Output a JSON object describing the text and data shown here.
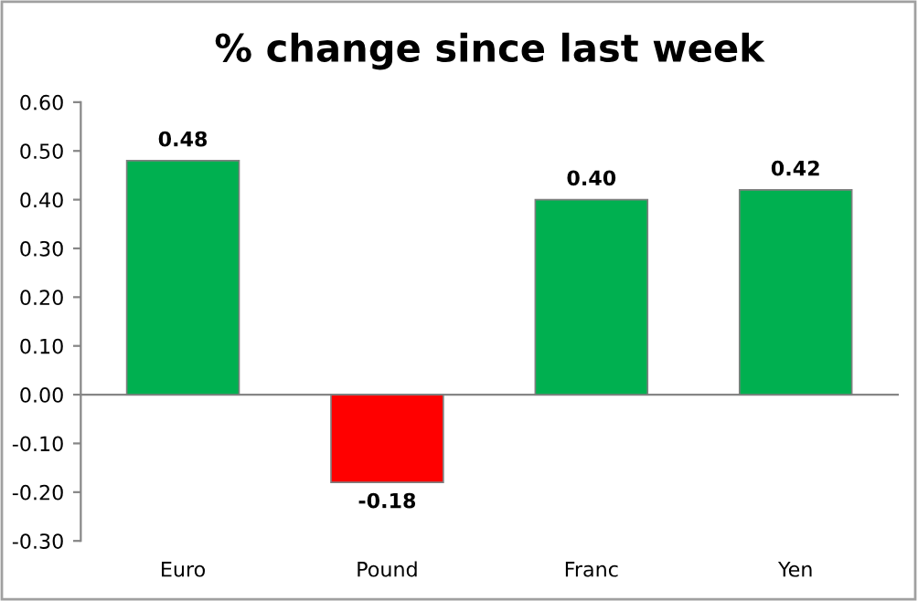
{
  "chart_data": {
    "type": "bar",
    "title": "% change since last week",
    "categories": [
      "Euro",
      "Pound",
      "Franc",
      "Yen"
    ],
    "values": [
      0.48,
      -0.18,
      0.4,
      0.42
    ],
    "colors": [
      "#00b050",
      "#ff0000",
      "#00b050",
      "#00b050"
    ],
    "value_labels": [
      "0.48",
      "-0.18",
      "0.40",
      "0.42"
    ],
    "ylim": [
      -0.3,
      0.6
    ],
    "yticks": [
      {
        "value": -0.3,
        "label": "-0.30"
      },
      {
        "value": -0.2,
        "label": "-0.20"
      },
      {
        "value": -0.1,
        "label": "-0.10"
      },
      {
        "value": 0,
        "label": "0.00"
      },
      {
        "value": 0.1,
        "label": "0.10"
      },
      {
        "value": 0.2,
        "label": "0.20"
      },
      {
        "value": 0.3,
        "label": "0.30"
      },
      {
        "value": 0.4,
        "label": "0.40"
      },
      {
        "value": 0.5,
        "label": "0.50"
      },
      {
        "value": 0.6,
        "label": "0.60"
      }
    ]
  }
}
